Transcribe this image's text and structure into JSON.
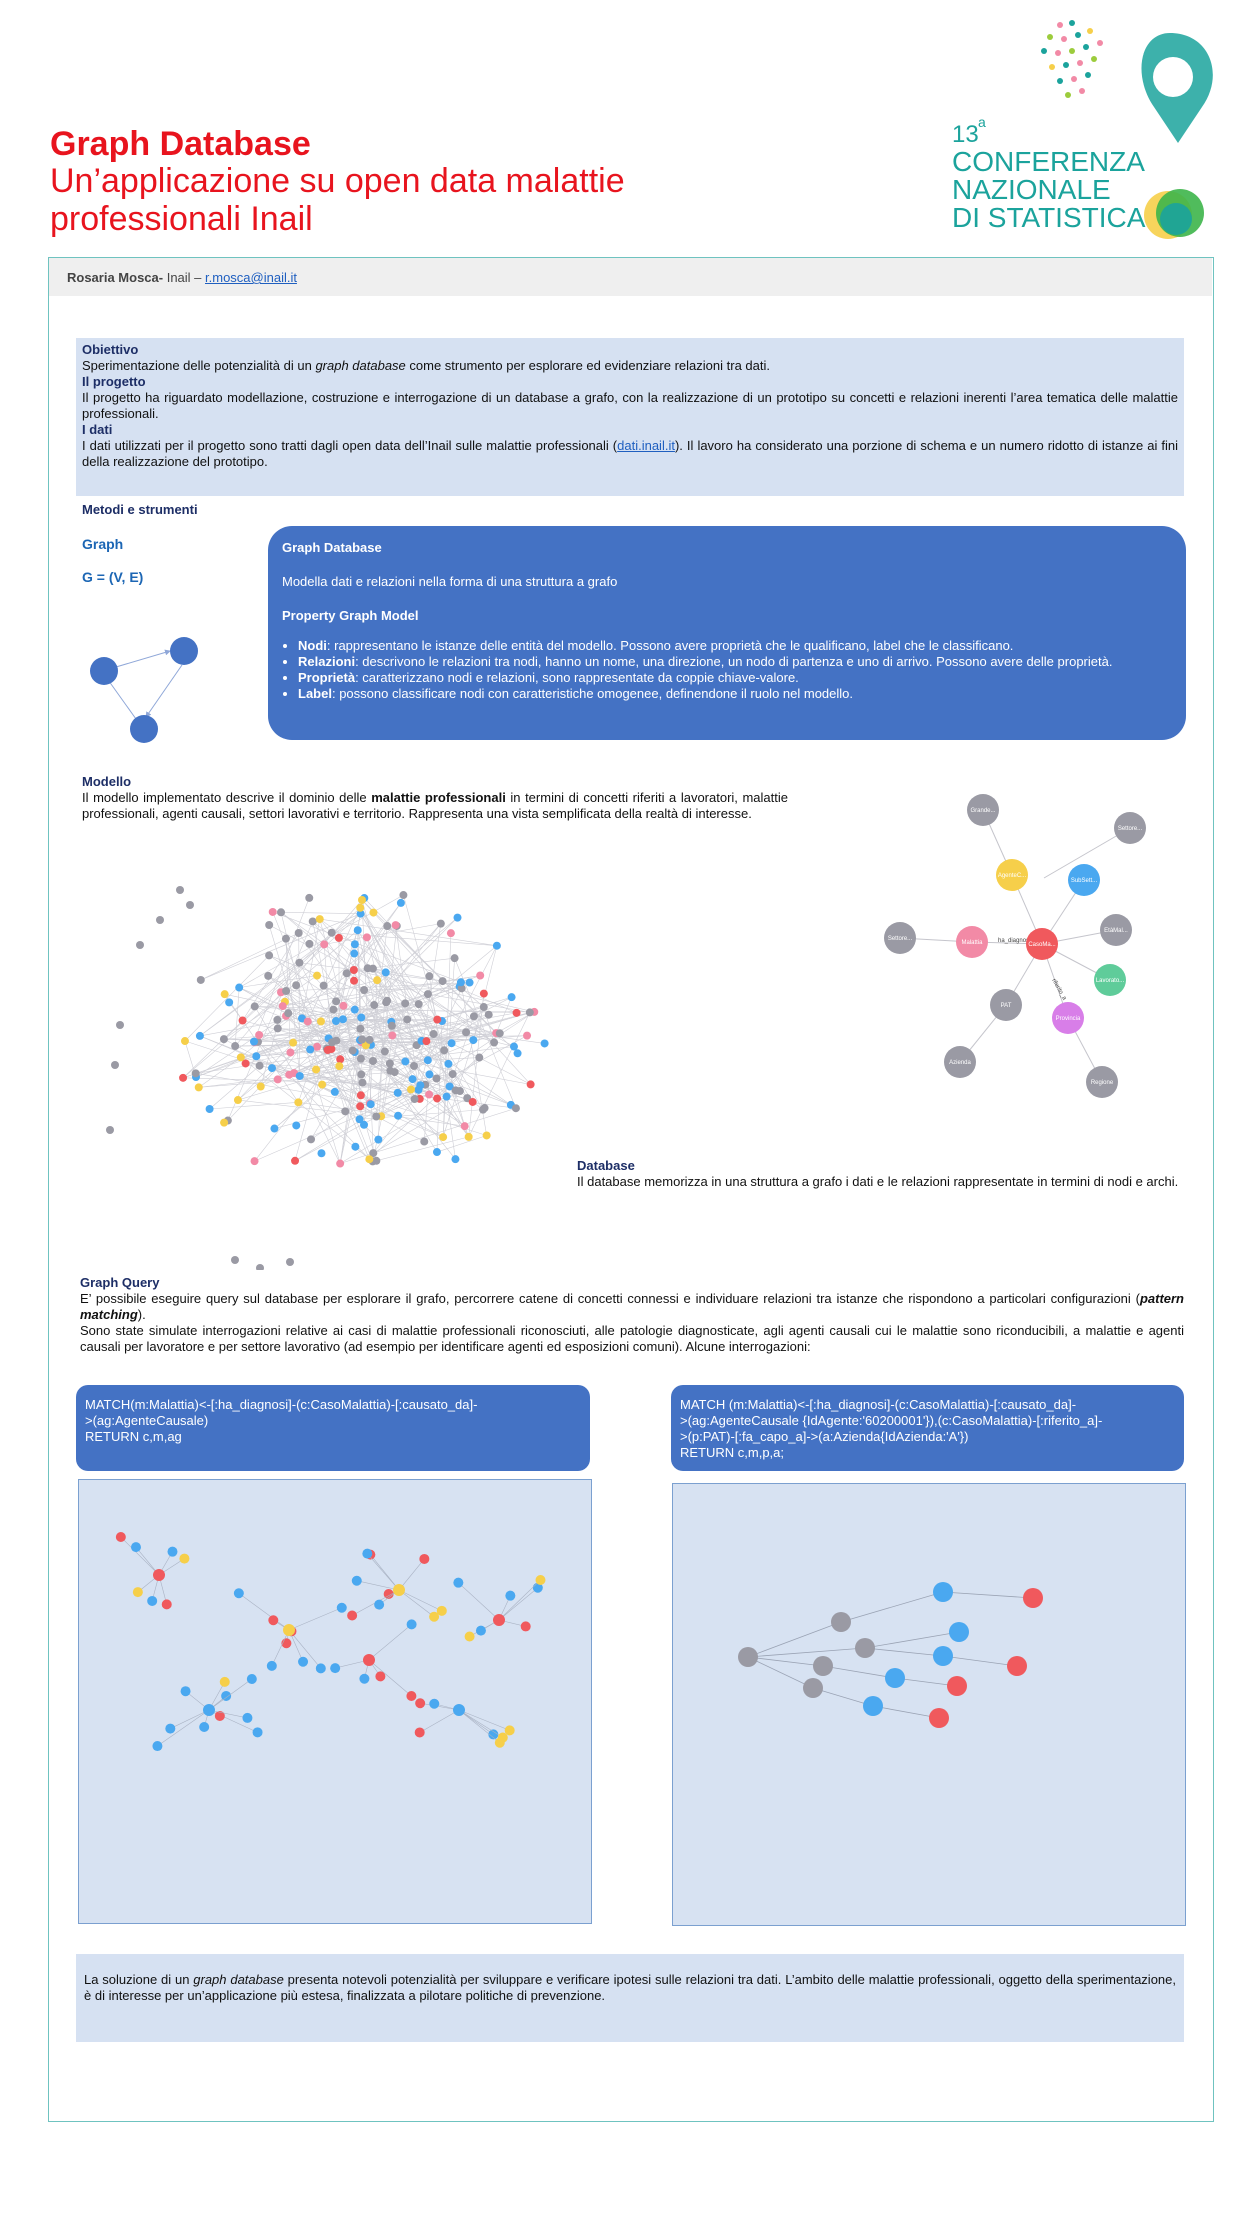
{
  "header": {
    "title": "Graph Database",
    "subtitle_line1": "Un’applicazione su open data malattie",
    "subtitle_line2": "professionali Inail",
    "logo": {
      "superscript": "13",
      "superscript_suffix": "a",
      "line1": "CONFERENZA",
      "line2": "NAZIONALE",
      "line3": "DI STATISTICA",
      "color": "#1ba39c"
    }
  },
  "author": {
    "name": "Rosaria Mosca-",
    "affiliation": " Inail – ",
    "email": "r.mosca@inail.it"
  },
  "obiettivo": {
    "h1": "Obiettivo",
    "p1_a": "Sperimentazione delle potenzialità di un ",
    "p1_em": "graph database",
    "p1_b": " come strumento per esplorare ed evidenziare relazioni tra dati.",
    "h2": "Il progetto",
    "p2": "Il progetto ha riguardato modellazione, costruzione e interrogazione di un database a grafo, con la realizzazione di un prototipo su concetti e relazioni inerenti l’area tematica delle malattie professionali.",
    "h3": "I dati",
    "p3_a": "I dati utilizzati per il progetto sono tratti dagli open data dell’Inail sulle malattie professionali (",
    "p3_link": "dati.inail.it",
    "p3_b": "). Il lavoro ha considerato una porzione di schema e un numero ridotto di istanze ai fini della realizzazione del prototipo."
  },
  "metodi": {
    "heading": "Metodi e strumenti",
    "graph_label": "Graph",
    "graph_formula": "G = (V, E)"
  },
  "property_graph": {
    "title": "Graph Database",
    "desc": "Modella dati e relazioni nella forma di una struttura a grafo",
    "subtitle": "Property Graph Model",
    "items": [
      {
        "term": "Nodi",
        "text": ": rappresentano le istanze delle entità del modello. Possono avere proprietà che le qualificano, label che le classificano."
      },
      {
        "term": "Relazioni",
        "text": ": descrivono le relazioni tra nodi, hanno un nome, una direzione, un nodo di partenza e uno di arrivo. Possono avere delle proprietà."
      },
      {
        "term": "Proprietà",
        "text": ": caratterizzano nodi e relazioni, sono rappresentate da coppie chiave-valore."
      },
      {
        "term": "Label",
        "text": ": possono classificare nodi con caratteristiche omogenee, definendone il ruolo nel modello."
      }
    ]
  },
  "modello": {
    "heading": "Modello",
    "p_a": "Il modello implementato descrive il dominio delle ",
    "p_strong": "malattie professionali",
    "p_b": " in termini di concetti riferiti a lavoratori, malattie professionali, agenti causali, settori lavorativi e territorio. Rappresenta una vista semplificata della realtà di interesse."
  },
  "schema_nodes": {
    "nodes": [
      "Grande...",
      "Settore...",
      "AgenteC...",
      "SubSett...",
      "Settore...",
      "Malattia",
      "CasoMa...",
      "EtàMal...",
      "Lavorato...",
      "PAT",
      "Provincia",
      "Azienda",
      "Regione"
    ],
    "edge_label": "ha_diagnosi",
    "edge_label2": "riferito_a"
  },
  "database": {
    "heading": "Database",
    "text": "Il database memorizza in una struttura a grafo i dati e le relazioni rappresentate in termini di nodi e archi."
  },
  "graph_query": {
    "heading": "Graph Query",
    "p1_a": "E’ possibile eseguire query sul database per esplorare il grafo, percorrere catene di concetti connessi e individuare relazioni tra istanze che rispondono a particolari configurazioni (",
    "p1_em": "pattern matching",
    "p1_b": ").",
    "p2": "Sono state simulate interrogazioni relative ai casi di malattie professionali riconosciuti, alle patologie diagnosticate, agli agenti causali cui le malattie sono riconducibili, a malattie e agenti causali per lavoratore e per settore lavorativo (ad esempio per identificare agenti ed esposizioni comuni). Alcune interrogazioni:"
  },
  "queries": {
    "q1_line1": "MATCH(m:Malattia)<-[:ha_diagnosi]-(c:CasoMalattia)-[:causato_da]-",
    "q1_line2": ">(ag:AgenteCausale)",
    "q1_line3": "RETURN c,m,ag",
    "q2_line1": "MATCH (m:Malattia)<-[:ha_diagnosi]-(c:CasoMalattia)-[:causato_da]-",
    "q2_line2": ">(ag:AgenteCausale {IdAgente:'60200001'}),(c:CasoMalattia)-[:riferito_a]-",
    "q2_line3": ">(p:PAT)-[:fa_capo_a]->(a:Azienda{IdAzienda:'A'})",
    "q2_line4": "RETURN c,m,p,a;"
  },
  "conclusione": {
    "p_a": "La soluzione di un ",
    "p_em": "graph database",
    "p_b": " presenta notevoli potenzialità per sviluppare e verificare ipotesi sulle relazioni tra dati. L’ambito delle malattie professionali, oggetto della sperimentazione, è di interesse per un’applicazione più estesa, finalizzata a pilotare politiche di prevenzione."
  },
  "colors": {
    "title_red": "#e8141e",
    "box_blue": "#4472c4",
    "panel_blue": "#d6e1f2",
    "node_grey": "#9a9aa4",
    "node_blue": "#4aa8f0",
    "node_yellow": "#f6cf4a",
    "node_red": "#f0595d",
    "node_pink": "#f28aa6",
    "node_green": "#5fcc9a",
    "node_purple": "#d87ee8"
  }
}
